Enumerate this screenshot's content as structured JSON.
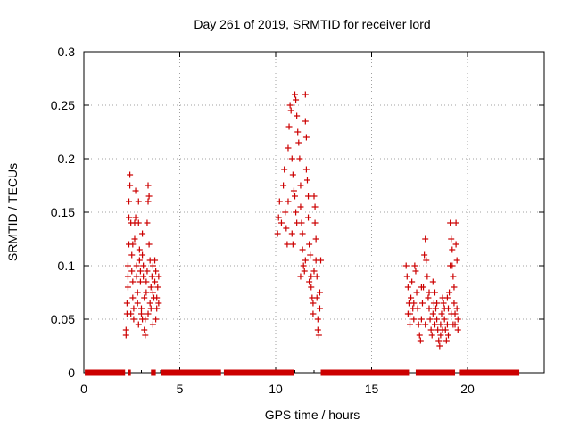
{
  "chart_data": {
    "type": "scatter",
    "title": "Day 261 of 2019, SRMTID for receiver lord",
    "xlabel": "GPS time / hours",
    "ylabel": "SRMTID / TECUs",
    "xlim": [
      0,
      24
    ],
    "ylim": [
      0,
      0.3
    ],
    "xticks": [
      0,
      5,
      10,
      15,
      20
    ],
    "xtick_labels": [
      "0",
      "5",
      "10",
      "15",
      "20"
    ],
    "yticks": [
      0,
      0.05,
      0.1,
      0.15,
      0.2,
      0.25,
      0.3
    ],
    "ytick_labels": [
      "0",
      "0.05",
      "0.1",
      "0.15",
      "0.2",
      "0.25",
      "0.3"
    ],
    "grid": true,
    "marker": "plus",
    "color": "#cc0000",
    "series": [
      {
        "name": "SRMTID",
        "points": [
          [
            2.2,
            0.035
          ],
          [
            2.2,
            0.04
          ],
          [
            2.25,
            0.055
          ],
          [
            2.25,
            0.065
          ],
          [
            2.3,
            0.08
          ],
          [
            2.3,
            0.09
          ],
          [
            2.3,
            0.1
          ],
          [
            2.35,
            0.12
          ],
          [
            2.35,
            0.145
          ],
          [
            2.35,
            0.16
          ],
          [
            2.4,
            0.175
          ],
          [
            2.4,
            0.185
          ],
          [
            2.45,
            0.14
          ],
          [
            2.5,
            0.11
          ],
          [
            2.5,
            0.095
          ],
          [
            2.55,
            0.085
          ],
          [
            2.55,
            0.07
          ],
          [
            2.6,
            0.06
          ],
          [
            2.6,
            0.05
          ],
          [
            2.65,
            0.125
          ],
          [
            2.65,
            0.14
          ],
          [
            2.7,
            0.145
          ],
          [
            2.7,
            0.17
          ],
          [
            2.75,
            0.1
          ],
          [
            2.75,
            0.09
          ],
          [
            2.8,
            0.075
          ],
          [
            2.8,
            0.065
          ],
          [
            2.85,
            0.16
          ],
          [
            2.85,
            0.14
          ],
          [
            2.9,
            0.115
          ],
          [
            2.9,
            0.105
          ],
          [
            2.95,
            0.095
          ],
          [
            2.95,
            0.085
          ],
          [
            3.0,
            0.06
          ],
          [
            3.0,
            0.055
          ],
          [
            3.05,
            0.13
          ],
          [
            3.05,
            0.11
          ],
          [
            3.1,
            0.1
          ],
          [
            3.1,
            0.09
          ],
          [
            3.15,
            0.07
          ],
          [
            3.15,
            0.04
          ],
          [
            3.2,
            0.035
          ],
          [
            3.2,
            0.05
          ],
          [
            3.25,
            0.075
          ],
          [
            3.25,
            0.085
          ],
          [
            3.3,
            0.095
          ],
          [
            3.3,
            0.14
          ],
          [
            3.35,
            0.16
          ],
          [
            3.35,
            0.175
          ],
          [
            3.4,
            0.165
          ],
          [
            3.4,
            0.12
          ],
          [
            3.45,
            0.105
          ],
          [
            3.45,
            0.065
          ],
          [
            3.5,
            0.06
          ],
          [
            3.5,
            0.08
          ],
          [
            3.55,
            0.09
          ],
          [
            3.6,
            0.1
          ],
          [
            3.6,
            0.075
          ],
          [
            3.65,
            0.07
          ],
          [
            3.7,
            0.085
          ],
          [
            3.7,
            0.105
          ],
          [
            3.75,
            0.095
          ],
          [
            3.8,
            0.06
          ],
          [
            3.8,
            0.07
          ],
          [
            3.85,
            0.08
          ],
          [
            3.9,
            0.09
          ],
          [
            3.9,
            0.065
          ],
          [
            2.45,
            0.055
          ],
          [
            2.55,
            0.12
          ],
          [
            2.85,
            0.045
          ],
          [
            3.05,
            0.05
          ],
          [
            3.35,
            0.055
          ],
          [
            3.6,
            0.045
          ],
          [
            3.75,
            0.05
          ],
          [
            10.1,
            0.13
          ],
          [
            10.15,
            0.145
          ],
          [
            10.2,
            0.16
          ],
          [
            10.3,
            0.14
          ],
          [
            10.4,
            0.175
          ],
          [
            10.45,
            0.19
          ],
          [
            10.5,
            0.15
          ],
          [
            10.55,
            0.135
          ],
          [
            10.6,
            0.12
          ],
          [
            10.65,
            0.21
          ],
          [
            10.7,
            0.23
          ],
          [
            10.75,
            0.25
          ],
          [
            10.8,
            0.245
          ],
          [
            10.85,
            0.2
          ],
          [
            10.9,
            0.185
          ],
          [
            10.95,
            0.17
          ],
          [
            11.0,
            0.165
          ],
          [
            11.0,
            0.26
          ],
          [
            11.05,
            0.255
          ],
          [
            11.1,
            0.24
          ],
          [
            11.15,
            0.225
          ],
          [
            11.2,
            0.215
          ],
          [
            11.25,
            0.2
          ],
          [
            11.3,
            0.175
          ],
          [
            11.3,
            0.155
          ],
          [
            11.35,
            0.14
          ],
          [
            11.4,
            0.13
          ],
          [
            11.4,
            0.115
          ],
          [
            11.45,
            0.1
          ],
          [
            11.5,
            0.095
          ],
          [
            11.55,
            0.26
          ],
          [
            11.55,
            0.235
          ],
          [
            11.6,
            0.22
          ],
          [
            11.6,
            0.19
          ],
          [
            11.65,
            0.18
          ],
          [
            11.7,
            0.165
          ],
          [
            11.7,
            0.145
          ],
          [
            11.75,
            0.12
          ],
          [
            11.8,
            0.11
          ],
          [
            11.85,
            0.09
          ],
          [
            11.85,
            0.08
          ],
          [
            11.9,
            0.07
          ],
          [
            11.95,
            0.065
          ],
          [
            11.95,
            0.055
          ],
          [
            12.0,
            0.165
          ],
          [
            12.05,
            0.155
          ],
          [
            12.05,
            0.14
          ],
          [
            12.1,
            0.125
          ],
          [
            12.1,
            0.105
          ],
          [
            12.15,
            0.09
          ],
          [
            12.2,
            0.05
          ],
          [
            12.2,
            0.04
          ],
          [
            12.25,
            0.035
          ],
          [
            12.3,
            0.06
          ],
          [
            12.3,
            0.075
          ],
          [
            12.35,
            0.105
          ],
          [
            10.9,
            0.12
          ],
          [
            11.1,
            0.14
          ],
          [
            11.3,
            0.09
          ],
          [
            11.55,
            0.105
          ],
          [
            11.75,
            0.085
          ],
          [
            12.0,
            0.095
          ],
          [
            12.15,
            0.07
          ],
          [
            10.65,
            0.16
          ],
          [
            10.85,
            0.13
          ],
          [
            11.05,
            0.15
          ],
          [
            16.8,
            0.1
          ],
          [
            16.85,
            0.09
          ],
          [
            16.9,
            0.08
          ],
          [
            16.95,
            0.065
          ],
          [
            17.0,
            0.055
          ],
          [
            17.0,
            0.045
          ],
          [
            17.05,
            0.07
          ],
          [
            17.1,
            0.085
          ],
          [
            17.15,
            0.06
          ],
          [
            17.2,
            0.05
          ],
          [
            17.25,
            0.1
          ],
          [
            17.3,
            0.095
          ],
          [
            17.35,
            0.075
          ],
          [
            17.4,
            0.06
          ],
          [
            17.45,
            0.045
          ],
          [
            17.5,
            0.035
          ],
          [
            17.55,
            0.03
          ],
          [
            17.6,
            0.05
          ],
          [
            17.65,
            0.065
          ],
          [
            17.7,
            0.08
          ],
          [
            17.75,
            0.11
          ],
          [
            17.8,
            0.125
          ],
          [
            17.85,
            0.105
          ],
          [
            17.9,
            0.09
          ],
          [
            17.95,
            0.07
          ],
          [
            18.0,
            0.06
          ],
          [
            18.05,
            0.05
          ],
          [
            18.1,
            0.04
          ],
          [
            18.15,
            0.035
          ],
          [
            18.2,
            0.055
          ],
          [
            18.25,
            0.065
          ],
          [
            18.3,
            0.075
          ],
          [
            18.35,
            0.06
          ],
          [
            18.4,
            0.05
          ],
          [
            18.45,
            0.04
          ],
          [
            18.5,
            0.03
          ],
          [
            18.55,
            0.025
          ],
          [
            18.6,
            0.045
          ],
          [
            18.65,
            0.055
          ],
          [
            18.7,
            0.07
          ],
          [
            18.75,
            0.065
          ],
          [
            18.8,
            0.05
          ],
          [
            18.85,
            0.04
          ],
          [
            18.9,
            0.03
          ],
          [
            18.95,
            0.045
          ],
          [
            19.0,
            0.06
          ],
          [
            19.05,
            0.075
          ],
          [
            19.1,
            0.1
          ],
          [
            19.1,
            0.14
          ],
          [
            19.15,
            0.125
          ],
          [
            19.2,
            0.115
          ],
          [
            19.2,
            0.1
          ],
          [
            19.25,
            0.09
          ],
          [
            19.3,
            0.08
          ],
          [
            19.3,
            0.065
          ],
          [
            19.35,
            0.055
          ],
          [
            19.35,
            0.045
          ],
          [
            19.4,
            0.14
          ],
          [
            19.4,
            0.12
          ],
          [
            19.45,
            0.105
          ],
          [
            19.45,
            0.06
          ],
          [
            19.5,
            0.05
          ],
          [
            19.5,
            0.04
          ],
          [
            18.0,
            0.075
          ],
          [
            18.2,
            0.085
          ],
          [
            18.4,
            0.065
          ],
          [
            18.6,
            0.035
          ],
          [
            18.8,
            0.06
          ],
          [
            19.0,
            0.035
          ],
          [
            17.8,
            0.045
          ],
          [
            17.6,
            0.08
          ],
          [
            17.2,
            0.065
          ],
          [
            16.9,
            0.055
          ],
          [
            19.25,
            0.045
          ],
          [
            18.3,
            0.045
          ],
          [
            18.7,
            0.04
          ],
          [
            18.95,
            0.07
          ],
          [
            19.15,
            0.055
          ]
        ]
      }
    ],
    "zero_segments": [
      [
        0.05,
        2.15
      ],
      [
        2.3,
        2.45
      ],
      [
        3.5,
        3.75
      ],
      [
        4.0,
        7.15
      ],
      [
        7.3,
        10.95
      ],
      [
        12.35,
        16.95
      ],
      [
        17.3,
        19.35
      ],
      [
        19.6,
        22.7
      ]
    ]
  }
}
